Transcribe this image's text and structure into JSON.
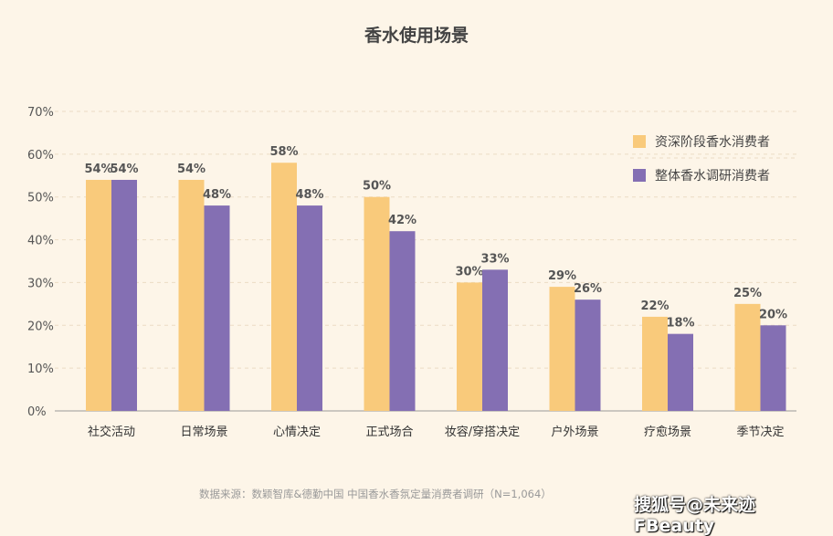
{
  "chart_data": {
    "type": "bar",
    "title": "香水使用场景",
    "categories": [
      "社交活动",
      "日常场景",
      "心情决定",
      "正式场合",
      "妆容/穿搭决定",
      "户外场景",
      "疗愈场景",
      "季节决定"
    ],
    "series": [
      {
        "name": "资深阶段香水消费者",
        "values": [
          54,
          54,
          58,
          50,
          30,
          29,
          22,
          25
        ],
        "color": "#f9ca7b"
      },
      {
        "name": "整体香水调研消费者",
        "values": [
          54,
          48,
          48,
          42,
          33,
          26,
          18,
          20
        ],
        "color": "#846fb3"
      }
    ],
    "ylim": [
      0,
      70
    ],
    "yticks": [
      "0%",
      "10%",
      "20%",
      "30%",
      "40%",
      "50%",
      "60%",
      "70%"
    ],
    "grid": true,
    "legend": "top-right"
  },
  "source": "数据来源：数颖智库&德勤中国   中国香水香氛定量消费者调研（N=1,064）",
  "watermark": "搜狐号@未来迹FBeauty"
}
